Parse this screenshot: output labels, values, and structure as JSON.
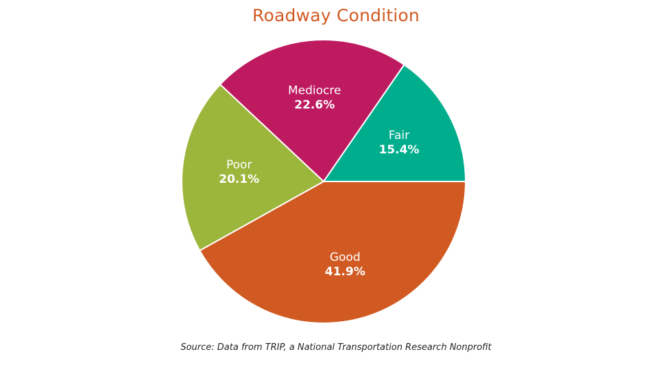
{
  "chart_data": {
    "type": "pie",
    "title": "Roadway Condition",
    "slices": [
      {
        "label": "Good",
        "value": 41.9,
        "display": "41.9%",
        "color": "#D15A22"
      },
      {
        "label": "Poor",
        "value": 20.1,
        "display": "20.1%",
        "color": "#9CB63C"
      },
      {
        "label": "Mediocre",
        "value": 22.6,
        "display": "22.6%",
        "color": "#BE1A60"
      },
      {
        "label": "Fair",
        "value": 15.4,
        "display": "15.4%",
        "color": "#00AE8E"
      }
    ],
    "source": "Source: Data from TRIP, a National Transportation Research Nonprofit"
  }
}
